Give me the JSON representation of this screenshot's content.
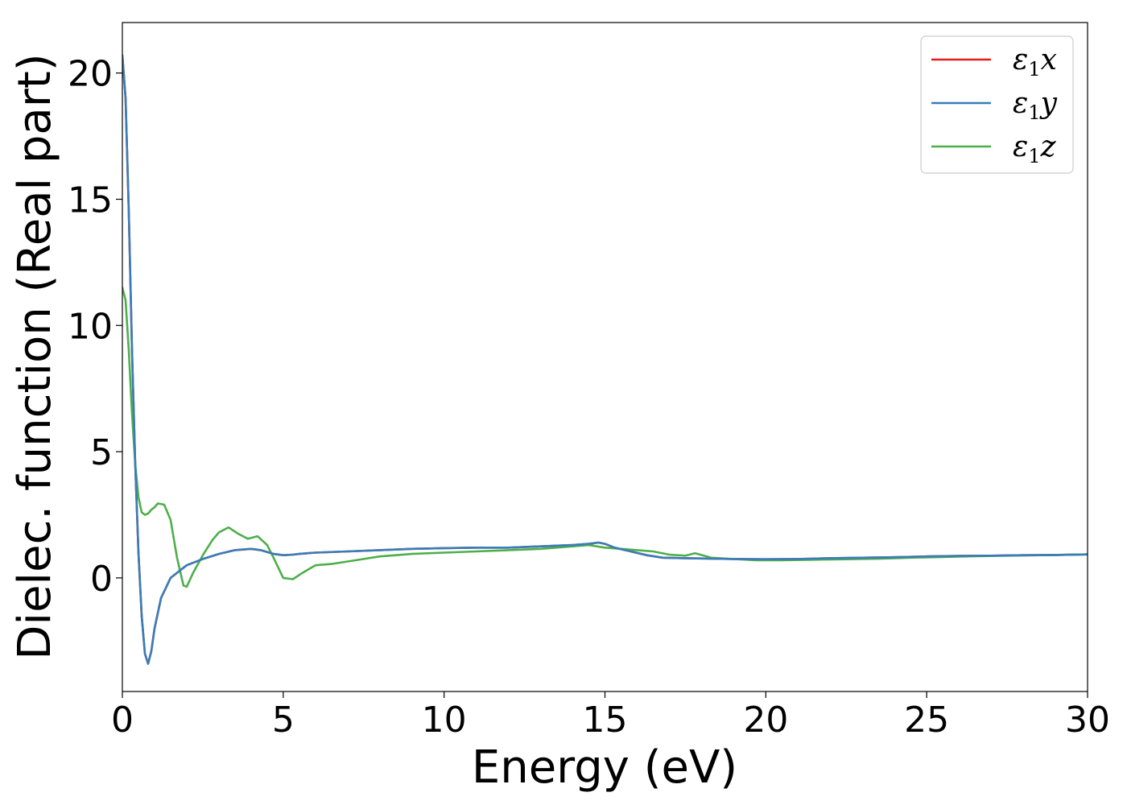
{
  "chart_data": {
    "type": "line",
    "xlabel": "Energy (eV)",
    "ylabel": "Dielec. function (Real part)",
    "xlim": [
      0,
      30
    ],
    "ylim": [
      -4.5,
      22
    ],
    "xticks": [
      0,
      5,
      10,
      15,
      20,
      25,
      30
    ],
    "yticks": [
      0,
      5,
      10,
      15,
      20
    ],
    "grid": false,
    "legend_position": "top-right",
    "series": [
      {
        "name": "ε1x",
        "label_main": "ε",
        "label_sub": "1",
        "label_var": "x",
        "color": "#e41a1c",
        "x": [
          0,
          0.1,
          0.2,
          0.3,
          0.4,
          0.5,
          0.6,
          0.7,
          0.8,
          0.9,
          1.0,
          1.2,
          1.5,
          2.0,
          2.5,
          3.0,
          3.5,
          4.0,
          4.3,
          4.7,
          5.0,
          5.3,
          5.5,
          6.0,
          7.0,
          8.0,
          9.0,
          10.0,
          11.0,
          12.0,
          13.0,
          14.0,
          14.5,
          14.8,
          15.0,
          15.3,
          15.8,
          16.3,
          16.8,
          17.5,
          18.5,
          19.0,
          20.0,
          21.0,
          22.0,
          23.0,
          24.0,
          25.0,
          26.0,
          27.0,
          28.0,
          29.0,
          30.0
        ],
        "y": [
          20.7,
          19.0,
          14.5,
          9.0,
          4.5,
          1.0,
          -1.5,
          -3.0,
          -3.4,
          -2.9,
          -2.0,
          -0.8,
          0.0,
          0.5,
          0.75,
          0.95,
          1.1,
          1.15,
          1.1,
          0.95,
          0.9,
          0.92,
          0.95,
          1.0,
          1.05,
          1.1,
          1.15,
          1.18,
          1.2,
          1.2,
          1.25,
          1.3,
          1.35,
          1.4,
          1.35,
          1.2,
          1.05,
          0.9,
          0.8,
          0.78,
          0.76,
          0.75,
          0.74,
          0.75,
          0.78,
          0.8,
          0.82,
          0.85,
          0.87,
          0.88,
          0.9,
          0.91,
          0.93
        ]
      },
      {
        "name": "ε1y",
        "label_main": "ε",
        "label_sub": "1",
        "label_var": "y",
        "color": "#377eb8",
        "x": [
          0,
          0.1,
          0.2,
          0.3,
          0.4,
          0.5,
          0.6,
          0.7,
          0.8,
          0.9,
          1.0,
          1.2,
          1.5,
          2.0,
          2.5,
          3.0,
          3.5,
          4.0,
          4.3,
          4.7,
          5.0,
          5.3,
          5.5,
          6.0,
          7.0,
          8.0,
          9.0,
          10.0,
          11.0,
          12.0,
          13.0,
          14.0,
          14.5,
          14.8,
          15.0,
          15.3,
          15.8,
          16.3,
          16.8,
          17.5,
          18.5,
          19.0,
          20.0,
          21.0,
          22.0,
          23.0,
          24.0,
          25.0,
          26.0,
          27.0,
          28.0,
          29.0,
          30.0
        ],
        "y": [
          20.7,
          19.0,
          14.5,
          9.0,
          4.5,
          1.0,
          -1.5,
          -3.0,
          -3.4,
          -2.9,
          -2.0,
          -0.8,
          0.0,
          0.5,
          0.75,
          0.95,
          1.1,
          1.15,
          1.1,
          0.95,
          0.9,
          0.92,
          0.95,
          1.0,
          1.05,
          1.1,
          1.15,
          1.18,
          1.2,
          1.2,
          1.25,
          1.3,
          1.35,
          1.4,
          1.35,
          1.2,
          1.05,
          0.9,
          0.8,
          0.78,
          0.76,
          0.75,
          0.74,
          0.75,
          0.78,
          0.8,
          0.82,
          0.85,
          0.87,
          0.88,
          0.9,
          0.91,
          0.93
        ]
      },
      {
        "name": "ε1z",
        "label_main": "ε",
        "label_sub": "1",
        "label_var": "z",
        "color": "#4daf4a",
        "x": [
          0,
          0.1,
          0.2,
          0.3,
          0.4,
          0.5,
          0.6,
          0.7,
          0.8,
          0.9,
          1.0,
          1.1,
          1.3,
          1.5,
          1.7,
          1.9,
          2.0,
          2.2,
          2.5,
          2.8,
          3.0,
          3.3,
          3.6,
          3.9,
          4.2,
          4.5,
          4.7,
          5.0,
          5.3,
          5.6,
          6.0,
          6.5,
          7.0,
          7.5,
          8.0,
          8.5,
          9.0,
          10.0,
          11.0,
          12.0,
          13.0,
          14.0,
          14.5,
          15.0,
          15.5,
          16.0,
          16.5,
          17.0,
          17.5,
          17.8,
          18.3,
          19.0,
          19.7,
          20.5,
          21.5,
          22.5,
          23.5,
          24.5,
          25.5,
          26.5,
          27.5,
          28.5,
          30.0
        ],
        "y": [
          11.5,
          11.0,
          9.0,
          6.5,
          4.5,
          3.2,
          2.6,
          2.5,
          2.55,
          2.7,
          2.8,
          2.95,
          2.9,
          2.3,
          0.8,
          -0.3,
          -0.35,
          0.2,
          0.9,
          1.5,
          1.8,
          2.0,
          1.75,
          1.55,
          1.65,
          1.3,
          0.8,
          0.0,
          -0.05,
          0.2,
          0.5,
          0.55,
          0.65,
          0.75,
          0.85,
          0.9,
          0.95,
          1.0,
          1.05,
          1.1,
          1.15,
          1.25,
          1.3,
          1.2,
          1.15,
          1.1,
          1.05,
          0.92,
          0.88,
          0.98,
          0.8,
          0.75,
          0.7,
          0.7,
          0.72,
          0.74,
          0.76,
          0.8,
          0.83,
          0.86,
          0.88,
          0.9,
          0.93
        ]
      }
    ]
  }
}
